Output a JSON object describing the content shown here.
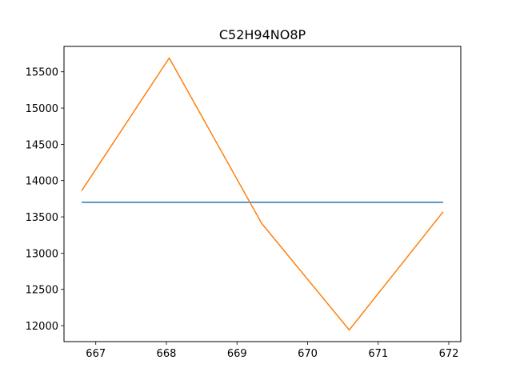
{
  "chart_data": {
    "type": "line",
    "title": "C52H94NO8P",
    "xlabel": "",
    "ylabel": "",
    "xlim": [
      666.55,
      672.17
    ],
    "ylim": [
      11780,
      15850
    ],
    "xticks": [
      667,
      668,
      669,
      670,
      671,
      672
    ],
    "yticks": [
      12000,
      12500,
      13000,
      13500,
      14000,
      14500,
      15000,
      15500
    ],
    "grid": false,
    "series": [
      {
        "color": "#1f77b4",
        "x": [
          666.8,
          671.92
        ],
        "y": [
          13700,
          13700
        ]
      },
      {
        "color": "#ff7f0e",
        "x": [
          666.8,
          668.04,
          669.35,
          670.59,
          671.92
        ],
        "y": [
          13860,
          15690,
          13410,
          11940,
          13570
        ]
      }
    ]
  }
}
